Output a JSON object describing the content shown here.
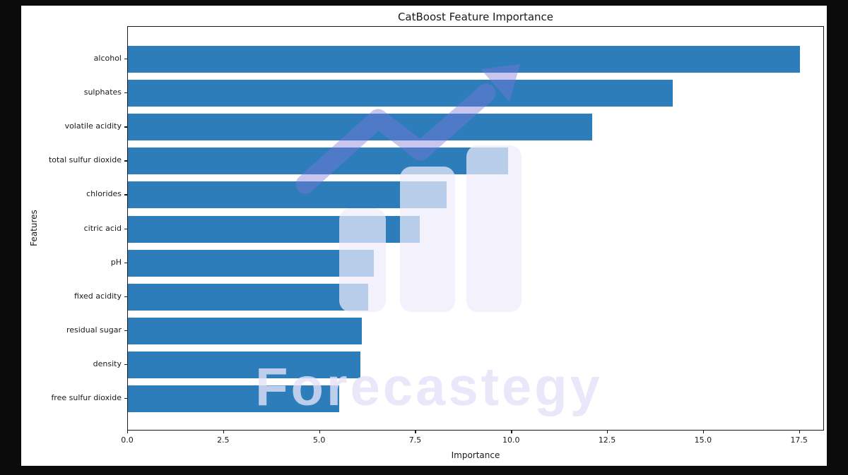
{
  "window": {
    "background_color": "#0b0b0b",
    "card_background_color": "#ffffff"
  },
  "chart_data": {
    "type": "bar",
    "orientation": "horizontal",
    "title": "CatBoost Feature Importance",
    "xlabel": "Importance",
    "ylabel": "Features",
    "categories": [
      "alcohol",
      "sulphates",
      "volatile acidity",
      "total sulfur dioxide",
      "chlorides",
      "citric acid",
      "pH",
      "fixed acidity",
      "residual sugar",
      "density",
      "free sulfur dioxide"
    ],
    "values": [
      17.5,
      14.2,
      12.1,
      9.9,
      8.3,
      7.6,
      6.4,
      6.25,
      6.1,
      6.05,
      5.5
    ],
    "xlim": [
      0,
      18.15
    ],
    "x_ticks": [
      0.0,
      2.5,
      5.0,
      7.5,
      10.0,
      12.5,
      15.0,
      17.5
    ],
    "x_tick_labels": [
      "0.0",
      "2.5",
      "5.0",
      "7.5",
      "10.0",
      "12.5",
      "15.0",
      "17.5"
    ],
    "bar_color": "#2d7dbb",
    "grid": false,
    "legend": null
  },
  "watermark": {
    "text": "Forecastegy",
    "text_color": "rgba(228,225,249,0.8)",
    "logo": "bar-chart-with-arrow-logo",
    "logo_bar_color": "rgba(238,236,251,0.72)",
    "logo_arrow_color": "rgba(125,118,216,0.42)"
  }
}
